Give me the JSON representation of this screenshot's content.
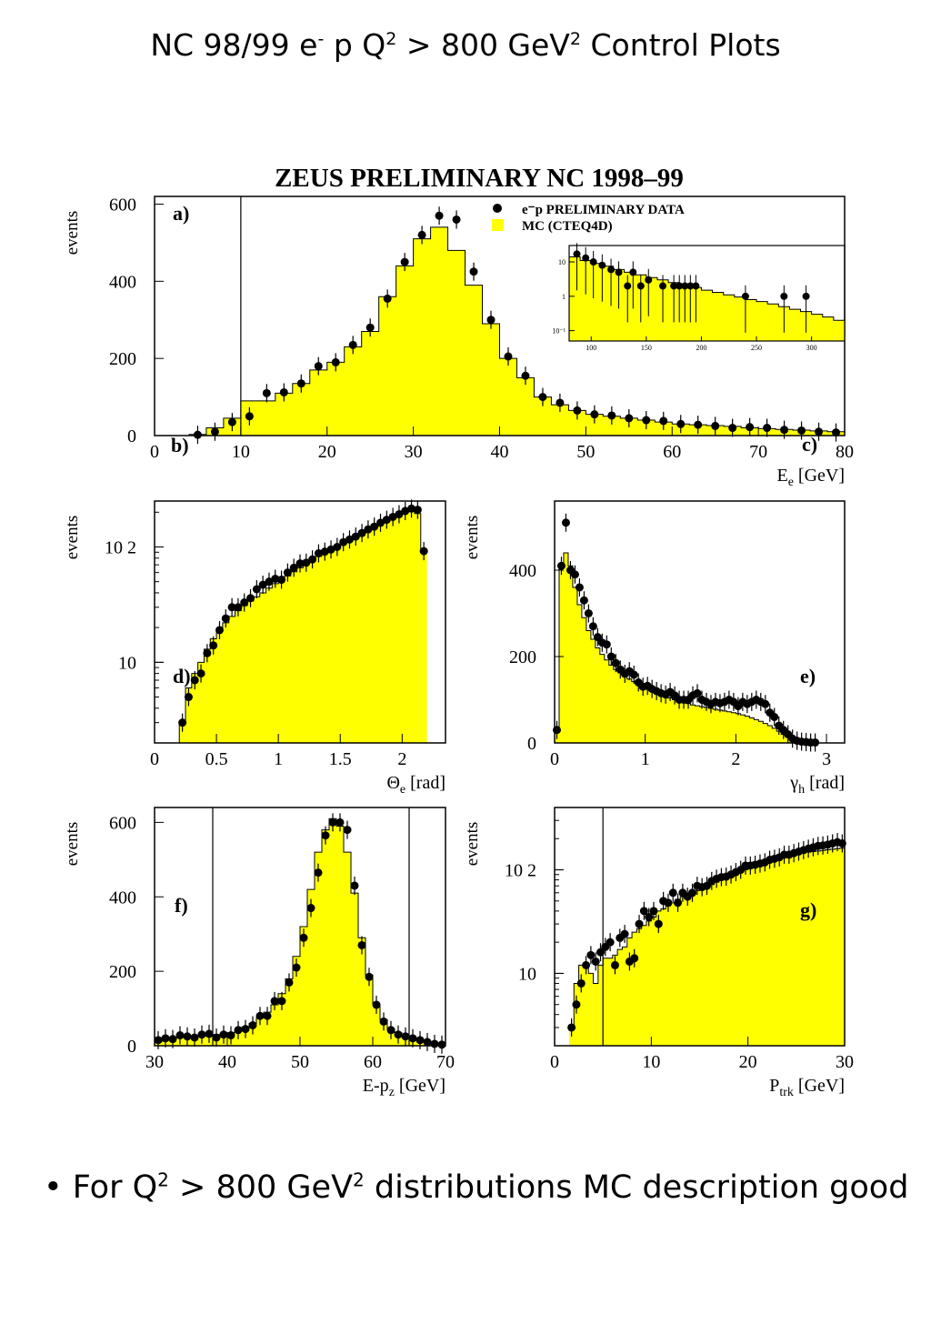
{
  "slide": {
    "title": {
      "prefix": "NC 98/99 e",
      "sup1": "-",
      "mid": " p Q",
      "sup2": "2",
      "mid2": " > 800 GeV",
      "sup3": "2",
      "suffix": " Control Plots"
    },
    "bullet": {
      "dot": "•",
      "prefix": "For Q",
      "sup1": "2",
      "mid": " > 800 GeV",
      "sup2": "2",
      "suffix": " distributions MC description good"
    }
  },
  "colors": {
    "mc_fill": "#ffff00",
    "data_marker": "#000000",
    "axis": "#000000"
  },
  "figure_title": "ZEUS PRELIMINARY NC 1998–99",
  "legend": {
    "data": "e⁻p PRELIMINARY DATA",
    "mc": "MC (CTEQ4D)"
  },
  "chart_data": [
    {
      "id": "a",
      "type": "histogram",
      "panel_label": "a)",
      "extra_label": "b)",
      "xlabel": "E_e [GeV]",
      "ylabel": "events",
      "xlim": [
        0,
        80
      ],
      "ylim": [
        0,
        620
      ],
      "log": false,
      "xticks": [
        0,
        10,
        20,
        30,
        40,
        50,
        60,
        70,
        80
      ],
      "yticks": [
        0,
        200,
        400,
        600
      ],
      "vlines": [
        10
      ],
      "x_centers": [
        1,
        3,
        5,
        7,
        9,
        11,
        13,
        15,
        17,
        19,
        21,
        23,
        25,
        27,
        29,
        31,
        33,
        35,
        37,
        39,
        41,
        43,
        45,
        47,
        49,
        51,
        53,
        55,
        57,
        59,
        61,
        63,
        65,
        67,
        69,
        71,
        73,
        75,
        77,
        79
      ],
      "mc": [
        0,
        0,
        3,
        20,
        45,
        90,
        90,
        110,
        135,
        170,
        190,
        230,
        270,
        360,
        440,
        510,
        540,
        480,
        390,
        290,
        200,
        150,
        100,
        80,
        65,
        55,
        50,
        45,
        40,
        35,
        30,
        28,
        26,
        24,
        20,
        18,
        16,
        14,
        12,
        10
      ],
      "data": [
        0,
        0,
        2,
        10,
        35,
        50,
        110,
        112,
        135,
        180,
        190,
        235,
        280,
        355,
        450,
        520,
        570,
        560,
        425,
        300,
        205,
        155,
        100,
        85,
        65,
        55,
        52,
        45,
        40,
        38,
        30,
        28,
        25,
        20,
        22,
        20,
        15,
        13,
        10,
        8
      ],
      "inset": {
        "xlim": [
          80,
          330
        ],
        "ylim_log": [
          0.05,
          30
        ],
        "xticks": [
          100,
          150,
          200,
          250,
          300
        ],
        "ytick_labels": [
          {
            "value": 10,
            "text": "10"
          },
          {
            "value": 1,
            "text": "1"
          },
          {
            "value": 0.1,
            "text": "10⁻¹"
          }
        ],
        "bin_edges": [
          80,
          90,
          100,
          110,
          120,
          130,
          140,
          150,
          160,
          170,
          180,
          190,
          200,
          210,
          220,
          230,
          240,
          250,
          260,
          270,
          280,
          290,
          300,
          310,
          320,
          330
        ],
        "mc": [
          14,
          11,
          9,
          7.5,
          6,
          5,
          4.2,
          3.5,
          3,
          2.5,
          2.1,
          1.8,
          1.5,
          1.3,
          1.1,
          0.95,
          0.8,
          0.7,
          0.6,
          0.5,
          0.42,
          0.36,
          0.3,
          0.25,
          0.2
        ],
        "data_points": [
          [
            87,
            17
          ],
          [
            95,
            13
          ],
          [
            102,
            10
          ],
          [
            110,
            8
          ],
          [
            118,
            6
          ],
          [
            125,
            5
          ],
          [
            133,
            2
          ],
          [
            138,
            5
          ],
          [
            145,
            2
          ],
          [
            152,
            3
          ],
          [
            165,
            2
          ],
          [
            175,
            2
          ],
          [
            180,
            2
          ],
          [
            185,
            2
          ],
          [
            190,
            2
          ],
          [
            195,
            2
          ],
          [
            240,
            1
          ],
          [
            275,
            1
          ],
          [
            295,
            1
          ]
        ]
      }
    },
    {
      "id": "d",
      "type": "histogram",
      "panel_label": "d)",
      "xlabel": "Θ_e [rad]",
      "ylabel": "events",
      "xlim": [
        0,
        2.35
      ],
      "ylim_log": [
        2,
        250
      ],
      "log": true,
      "xticks": [
        {
          "value": 0,
          "text": "0"
        },
        {
          "value": 0.5,
          "text": "0.5"
        },
        {
          "value": 1,
          "text": "1"
        },
        {
          "value": 1.5,
          "text": "1.5"
        },
        {
          "value": 2,
          "text": "2"
        }
      ],
      "ytick_labels": [
        {
          "value": 10,
          "text": "10"
        },
        {
          "value": 100,
          "text": "10 2"
        }
      ],
      "bin_edges": [
        0.15,
        0.2,
        0.25,
        0.3,
        0.35,
        0.4,
        0.45,
        0.5,
        0.55,
        0.6,
        0.65,
        0.7,
        0.75,
        0.8,
        0.85,
        0.9,
        0.95,
        1.0,
        1.05,
        1.1,
        1.15,
        1.2,
        1.25,
        1.3,
        1.35,
        1.4,
        1.45,
        1.5,
        1.55,
        1.6,
        1.65,
        1.7,
        1.75,
        1.8,
        1.85,
        1.9,
        1.95,
        2.0,
        2.05,
        2.1,
        2.15,
        2.2
      ],
      "mc": [
        0,
        3,
        6,
        8,
        10,
        13,
        16,
        19,
        22,
        25,
        28,
        31,
        34,
        37,
        40,
        44,
        48,
        52,
        56,
        61,
        66,
        71,
        77,
        83,
        89,
        96,
        103,
        111,
        119,
        128,
        137,
        147,
        157,
        168,
        179,
        190,
        200,
        210,
        215,
        195,
        90
      ],
      "data": [
        0,
        3,
        5,
        7,
        8,
        12,
        14,
        19,
        24,
        30,
        30,
        33,
        36,
        43,
        47,
        50,
        53,
        52,
        60,
        66,
        72,
        73,
        78,
        88,
        91,
        95,
        100,
        110,
        116,
        123,
        132,
        142,
        150,
        162,
        172,
        182,
        192,
        205,
        215,
        210,
        92
      ]
    },
    {
      "id": "e",
      "type": "histogram",
      "panel_label": "e)",
      "xlabel": "γ_h [rad]",
      "ylabel": "events",
      "xlim": [
        0,
        3.2
      ],
      "ylim": [
        0,
        560
      ],
      "log": false,
      "xticks": [
        0,
        1,
        2,
        3
      ],
      "yticks": [
        0,
        200,
        400
      ],
      "bin_edges": [
        0,
        0.05,
        0.1,
        0.15,
        0.2,
        0.25,
        0.3,
        0.35,
        0.4,
        0.45,
        0.5,
        0.55,
        0.6,
        0.65,
        0.7,
        0.75,
        0.8,
        0.85,
        0.9,
        0.95,
        1.0,
        1.05,
        1.1,
        1.15,
        1.2,
        1.25,
        1.3,
        1.35,
        1.4,
        1.45,
        1.5,
        1.55,
        1.6,
        1.65,
        1.7,
        1.75,
        1.8,
        1.85,
        1.9,
        1.95,
        2.0,
        2.05,
        2.1,
        2.15,
        2.2,
        2.25,
        2.3,
        2.35,
        2.4,
        2.45,
        2.5,
        2.55,
        2.6,
        2.65,
        2.7,
        2.75,
        2.8,
        2.85,
        2.9,
        2.95,
        3.0
      ],
      "mc": [
        30,
        410,
        440,
        410,
        360,
        320,
        290,
        260,
        240,
        220,
        205,
        192,
        180,
        170,
        162,
        155,
        148,
        142,
        136,
        130,
        125,
        120,
        116,
        112,
        108,
        104,
        100,
        97,
        94,
        91,
        88,
        86,
        84,
        82,
        80,
        78,
        76,
        74,
        72,
        70,
        68,
        65,
        62,
        58,
        54,
        50,
        45,
        40,
        34,
        27,
        20,
        14,
        9,
        5,
        3,
        2,
        1,
        1,
        0,
        0
      ],
      "data": [
        30,
        410,
        510,
        400,
        390,
        360,
        330,
        300,
        270,
        245,
        232,
        228,
        200,
        185,
        170,
        160,
        166,
        158,
        140,
        130,
        132,
        125,
        120,
        115,
        112,
        118,
        110,
        100,
        100,
        100,
        110,
        115,
        100,
        95,
        90,
        95,
        92,
        95,
        100,
        95,
        85,
        95,
        90,
        95,
        100,
        95,
        90,
        70,
        60,
        40,
        30,
        20,
        10,
        5,
        3,
        2,
        1,
        1,
        0,
        0
      ]
    },
    {
      "id": "f",
      "type": "histogram",
      "panel_label": "f)",
      "xlabel": "E-p_z [GeV]",
      "ylabel": "events",
      "xlim": [
        30,
        70
      ],
      "ylim": [
        0,
        640
      ],
      "log": false,
      "xticks": [
        30,
        40,
        50,
        60,
        70
      ],
      "yticks": [
        0,
        200,
        400,
        600
      ],
      "vlines": [
        38,
        65
      ],
      "bin_edges": [
        30,
        31,
        32,
        33,
        34,
        35,
        36,
        37,
        38,
        39,
        40,
        41,
        42,
        43,
        44,
        45,
        46,
        47,
        48,
        49,
        50,
        51,
        52,
        53,
        54,
        55,
        56,
        57,
        58,
        59,
        60,
        61,
        62,
        63,
        64,
        65,
        66,
        67,
        68,
        69,
        70
      ],
      "mc": [
        10,
        15,
        20,
        22,
        24,
        25,
        26,
        28,
        30,
        32,
        35,
        40,
        50,
        60,
        75,
        90,
        110,
        140,
        180,
        240,
        320,
        420,
        520,
        580,
        610,
        590,
        520,
        410,
        290,
        190,
        110,
        70,
        45,
        35,
        25,
        20,
        15,
        10,
        5,
        3
      ],
      "data": [
        15,
        20,
        18,
        28,
        25,
        22,
        30,
        32,
        22,
        30,
        28,
        42,
        45,
        55,
        80,
        80,
        120,
        120,
        170,
        210,
        290,
        370,
        465,
        565,
        600,
        600,
        580,
        430,
        270,
        185,
        110,
        65,
        42,
        30,
        25,
        20,
        15,
        10,
        5,
        3
      ]
    },
    {
      "id": "g",
      "type": "histogram",
      "panel_label": "g)",
      "xlabel": "P_trk [GeV]",
      "ylabel": "events",
      "xlim": [
        0,
        30
      ],
      "ylim_log": [
        2,
        400
      ],
      "log": true,
      "xticks": [
        0,
        10,
        20,
        30
      ],
      "ytick_labels": [
        {
          "value": 10,
          "text": "10"
        },
        {
          "value": 100,
          "text": "10 2"
        }
      ],
      "vlines": [
        5
      ],
      "bin_edges": [
        1.5,
        2,
        2.5,
        3,
        3.5,
        4,
        4.5,
        5,
        5.5,
        6,
        6.5,
        7,
        7.5,
        8,
        8.5,
        9,
        9.5,
        10,
        10.5,
        11,
        11.5,
        12,
        12.5,
        13,
        13.5,
        14,
        14.5,
        15,
        15.5,
        16,
        16.5,
        17,
        17.5,
        18,
        18.5,
        19,
        19.5,
        20,
        20.5,
        21,
        21.5,
        22,
        22.5,
        23,
        23.5,
        24,
        24.5,
        25,
        25.5,
        26,
        26.5,
        27,
        27.5,
        28,
        28.5,
        29,
        29.5,
        30
      ],
      "mc": [
        3,
        8,
        12,
        12,
        10,
        8,
        12,
        14,
        14,
        15,
        17,
        18,
        22,
        25,
        27,
        29,
        32,
        35,
        40,
        42,
        45,
        48,
        52,
        55,
        58,
        60,
        63,
        66,
        69,
        72,
        76,
        80,
        84,
        88,
        92,
        96,
        100,
        104,
        108,
        112,
        116,
        120,
        124,
        128,
        132,
        136,
        140,
        143,
        146,
        148,
        150,
        152,
        154,
        156,
        158,
        160,
        162
      ],
      "data": [
        3,
        5,
        8,
        12,
        15,
        13,
        16,
        18,
        20,
        12,
        22,
        24,
        13,
        14,
        30,
        40,
        35,
        40,
        30,
        50,
        48,
        60,
        48,
        60,
        55,
        60,
        70,
        68,
        70,
        78,
        82,
        85,
        86,
        90,
        95,
        100,
        110,
        110,
        112,
        115,
        118,
        125,
        128,
        132,
        140,
        140,
        145,
        150,
        155,
        160,
        165,
        170,
        172,
        175,
        180,
        185,
        180
      ]
    }
  ]
}
